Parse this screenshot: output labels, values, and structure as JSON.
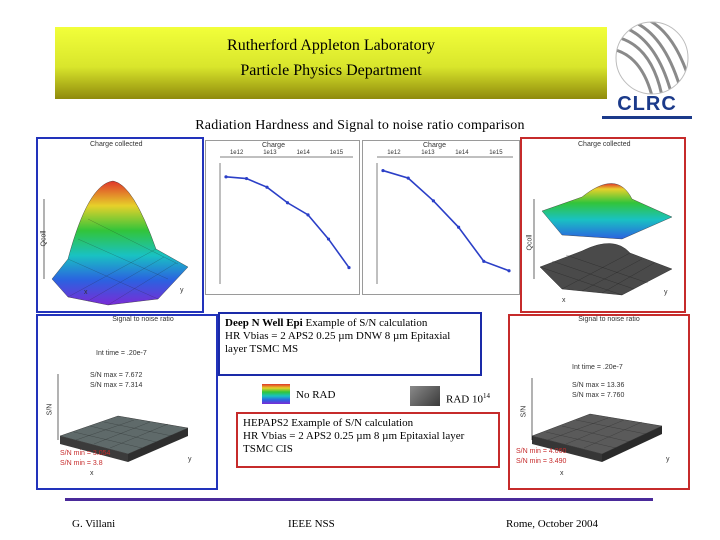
{
  "header": {
    "line1": "Rutherford Appleton Laboratory",
    "line2": "Particle Physics Department",
    "logo_text": "CLRC",
    "logo_icon": "globe-swoosh-icon"
  },
  "subtitle": "Radiation Hardness and Signal to noise ratio comparison",
  "panels": {
    "charge_left": {
      "title": "Charge collected",
      "z_label": "Qcoll",
      "x_label": "x",
      "y_label": "y"
    },
    "charge_right": {
      "title": "Charge collected",
      "z_label": "Qcoll",
      "x_label": "x",
      "y_label": "y"
    },
    "sn_left": {
      "title": "Signal to noise ratio",
      "int_time": "Int time = .20e-7",
      "sn_max_1": "S/N max = 7.672",
      "sn_max_2": "S/N max = 7.314",
      "sn_min_1": "S/N min = 3.054",
      "sn_min_2": "S/N min = 3.8",
      "z_label": "S/N",
      "x_label": "x",
      "y_label": "y"
    },
    "sn_right": {
      "title": "Signal to noise ratio",
      "int_time": "Int time = .20e-7",
      "sn_max_1": "S/N max = 13.36",
      "sn_max_2": "S/N max = 7.760",
      "sn_min_1": "S/N min = 4.060",
      "sn_min_2": "S/N min = 3.490",
      "z_label": "S/N",
      "x_label": "x",
      "y_label": "y"
    }
  },
  "chart_data": [
    {
      "type": "line",
      "title": "Charge",
      "top_labels": [
        "1e12",
        "1e13",
        "1e14",
        "1e15"
      ],
      "x": [
        0,
        1,
        2,
        3,
        4,
        5,
        6
      ],
      "values": [
        620,
        610,
        560,
        470,
        400,
        260,
        95
      ],
      "ylim": [
        0,
        700
      ],
      "color": "#2b3fc7"
    },
    {
      "type": "line",
      "title": "Charge",
      "top_labels": [
        "1e12",
        "1e13",
        "1e14",
        "1e15"
      ],
      "x": [
        0,
        1,
        2,
        3,
        4,
        5
      ],
      "values": [
        300,
        280,
        220,
        150,
        60,
        35
      ],
      "ylim": [
        0,
        320
      ],
      "color": "#2b3fc7"
    }
  ],
  "note1": {
    "bold": "Deep N Well Epi",
    "rest": " Example of S/N calculation",
    "line2": "HR Vbias = 2 APS2 0.25 µm DNW 8 µm Epitaxial",
    "line3": "layer TSMC MS"
  },
  "legend": {
    "no_rad": "No RAD",
    "rad": "RAD 10",
    "rad_exp": "14"
  },
  "note2": {
    "line1": "HEPAPS2 Example of S/N calculation",
    "line2": "HR Vbias = 2 APS2 0.25 µm 8 µm Epitaxial layer",
    "line3": "TSMC CIS"
  },
  "footer": {
    "left": "G. Villani",
    "center": "IEEE NSS",
    "right": "Rome, October 2004"
  },
  "colors": {
    "blue_frame": "#2233bb",
    "red_frame": "#c62b2b",
    "footer_rule": "#4a2a9a",
    "logo_blue": "#1b3a8a"
  }
}
